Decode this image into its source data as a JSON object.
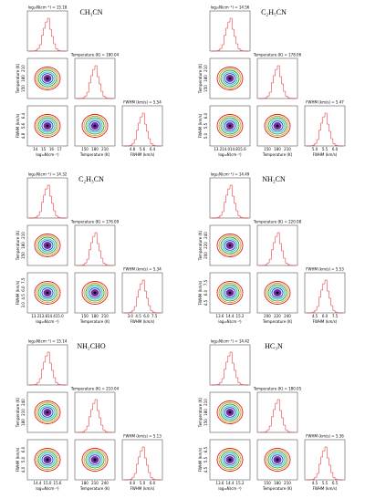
{
  "panels": [
    {
      "name": "CH₃CN",
      "titles": [
        "log₁₀N(cm⁻²) = 15.18",
        "Temperature (K) = 180.04",
        "FWHM (km/s) = 5.54"
      ],
      "ticks": [
        [
          "14",
          "15",
          "16",
          "17"
        ],
        [
          "150",
          "180",
          "210"
        ],
        [
          "4.8",
          "5.6",
          "6.4"
        ]
      ]
    },
    {
      "name": "C₂H₅CN",
      "titles": [
        "log₁₀N(cm⁻²) = 14.56",
        "Temperature (K) = 178.06",
        "FWHM (km/s) = 5.47"
      ],
      "ticks": [
        [
          "13.2",
          "14.0",
          "14.8",
          "15.6"
        ],
        [
          "150",
          "180",
          "210"
        ],
        [
          "5.0",
          "5.5",
          "6.0"
        ]
      ]
    },
    {
      "name": "C₂H₃CN",
      "titles": [
        "log₁₀N(cm⁻²) = 14.32",
        "Temperature (K) = 176.09",
        "FWHM (km/s) = 5.34"
      ],
      "ticks": [
        [
          "13.2",
          "13.8",
          "14.4",
          "15.0"
        ],
        [
          "150",
          "180",
          "210"
        ],
        [
          "3.0",
          "4.5",
          "6.0",
          "7.5"
        ]
      ]
    },
    {
      "name": "NH₂CN",
      "titles": [
        "log₁₀N(cm⁻²) = 14.49",
        "Temperature (K) = 220.08",
        "FWHM (km/s) = 5.53"
      ],
      "ticks": [
        [
          "13.6",
          "14.4",
          "15.2"
        ],
        [
          "200",
          "220",
          "240"
        ],
        [
          "4.5",
          "6.0",
          "7.5"
        ]
      ]
    },
    {
      "name": "NH₂CHO",
      "titles": [
        "log₁₀N(cm⁻²) = 15.14",
        "Temperature (K) = 210.04",
        "FWHM (km/s) = 5.13"
      ],
      "ticks": [
        [
          "14.4",
          "15.0",
          "15.6"
        ],
        [
          "180",
          "210",
          "240"
        ],
        [
          "4.0",
          "5.0",
          "6.0"
        ]
      ]
    },
    {
      "name": "HC₃N",
      "titles": [
        "log₁₀N(cm⁻²) = 14.42",
        "Temperature (K) = 180.05",
        "FWHM (km/s) = 5.36"
      ],
      "ticks": [
        [
          "13.6",
          "14.4",
          "15.2"
        ],
        [
          "150",
          "180",
          "210"
        ],
        [
          "4.5",
          "5.5",
          "6.5"
        ]
      ]
    }
  ],
  "axis_labels": [
    "log₁₀N(cm⁻²)",
    "Temperature (K)",
    "FWHM (km/s)"
  ]
}
